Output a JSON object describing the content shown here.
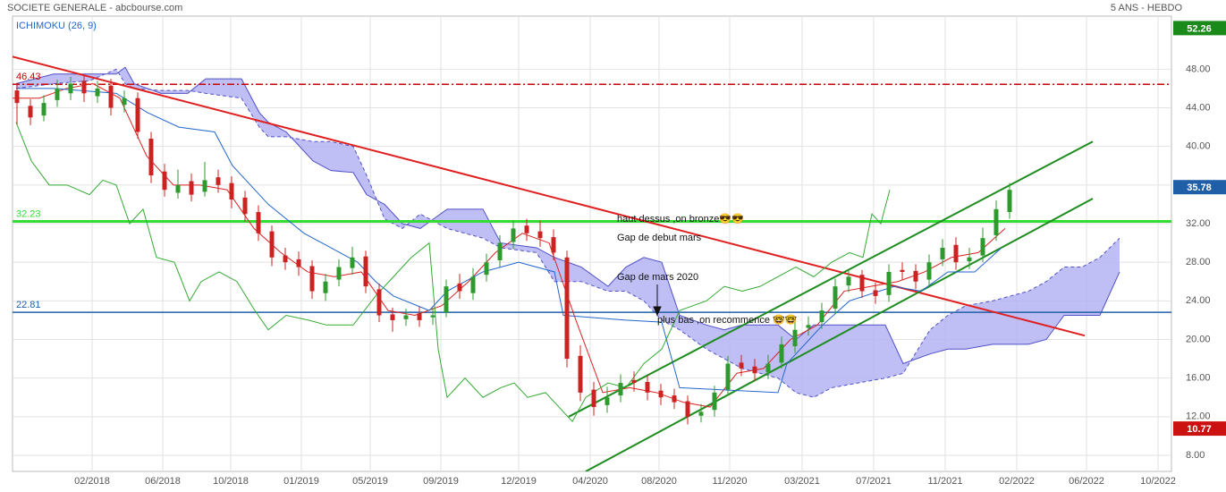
{
  "chart_data": {
    "type": "candlestick",
    "title": "SOCIETE GENERALE - abcbourse.com",
    "subtitle": "5 ANS - HEBDO",
    "indicator": "ICHIMOKU (26, 9)",
    "xlim": [
      0,
      259.2
    ],
    "ylim": [
      6.33,
      53.5
    ],
    "grid": true,
    "xticks": [
      {
        "value": 17.8,
        "label": "02/2018"
      },
      {
        "value": 33.6,
        "label": "06/2018"
      },
      {
        "value": 48.8,
        "label": "10/2018"
      },
      {
        "value": 64.6,
        "label": "01/2019"
      },
      {
        "value": 80,
        "label": "05/2019"
      },
      {
        "value": 95.8,
        "label": "09/2019"
      },
      {
        "value": 113.2,
        "label": "12/2019"
      },
      {
        "value": 129.2,
        "label": "04/2020"
      },
      {
        "value": 144.6,
        "label": "08/2020"
      },
      {
        "value": 160.4,
        "label": "11/2020"
      },
      {
        "value": 176.6,
        "label": "03/2021"
      },
      {
        "value": 192.6,
        "label": "07/2021"
      },
      {
        "value": 208.6,
        "label": "11/2021"
      },
      {
        "value": 224.6,
        "label": "02/2022"
      },
      {
        "value": 240.2,
        "label": "06/2022"
      },
      {
        "value": 256.2,
        "label": "10/2022"
      }
    ],
    "yticks": [
      {
        "value": 8,
        "label": "8.00"
      },
      {
        "value": 12,
        "label": "12.00"
      },
      {
        "value": 16,
        "label": "16.00"
      },
      {
        "value": 20,
        "label": "20.00"
      },
      {
        "value": 24,
        "label": "24.00"
      },
      {
        "value": 28,
        "label": "28.00"
      },
      {
        "value": 32,
        "label": "32.00"
      },
      {
        "value": 36,
        "label": "36.00"
      },
      {
        "value": 40,
        "label": "40.00"
      },
      {
        "value": 44,
        "label": "44.00"
      },
      {
        "value": 48,
        "label": "48.00"
      }
    ],
    "up_color": "#2e9a2e",
    "down_color": "#cc2222",
    "x": [
      1,
      4,
      7,
      10,
      13,
      16,
      19,
      22,
      25,
      28,
      31,
      34,
      37,
      40,
      43,
      46,
      49,
      52,
      55,
      58,
      61,
      64,
      67,
      70,
      73,
      76,
      79,
      82,
      85,
      88,
      91,
      94,
      97,
      100,
      103,
      106,
      109,
      112,
      115,
      118,
      121,
      124,
      127,
      130,
      133,
      136,
      139,
      142,
      145,
      148,
      151,
      154,
      157,
      160,
      163,
      166,
      169,
      172,
      175,
      178,
      181,
      184,
      187,
      190,
      193,
      196,
      199,
      202,
      205,
      208,
      211,
      214,
      217,
      220,
      223
    ],
    "open": [
      45.8,
      44.2,
      43.2,
      44.8,
      45.5,
      46.8,
      45.2,
      46.3,
      44.3,
      45,
      40.8,
      37.4,
      35.2,
      36.4,
      35.3,
      36.8,
      36.2,
      34.7,
      33.2,
      31.2,
      28.7,
      28.3,
      27.6,
      24.8,
      26.2,
      27.4,
      28.6,
      25.2,
      22.6,
      22.1,
      22.7,
      22.3,
      22.8,
      25.8,
      24.8,
      26.7,
      28.2,
      30.1,
      31.8,
      31.2,
      30.6,
      28.5,
      18.3,
      14.8,
      13.2,
      14.2,
      15.8,
      15.6,
      14.7,
      14.2,
      13.6,
      12.1,
      12.7,
      14.8,
      17.6,
      17.2,
      16.6,
      17.6,
      19.3,
      21.2,
      21.8,
      23.2,
      25.6,
      26.7,
      25.1,
      24.6,
      27.2,
      27.1,
      26.2,
      28.3,
      29.8,
      28.1,
      28.7,
      30.8,
      33.2
    ],
    "high": [
      46.6,
      44.9,
      45.3,
      46.9,
      47.2,
      47.4,
      46.8,
      47,
      45.8,
      45.6,
      41.5,
      38.2,
      37.6,
      37.2,
      38.4,
      37.6,
      36.9,
      35.4,
      33.9,
      31.8,
      29.5,
      29.1,
      28.2,
      26.8,
      28.3,
      29.6,
      29.2,
      25.8,
      23.3,
      23.2,
      23.4,
      23.3,
      26.2,
      26.8,
      27.4,
      28.9,
      30.8,
      32.3,
      32.5,
      32.3,
      31.4,
      29.2,
      19.4,
      15.6,
      15.1,
      16.4,
      16.7,
      16.3,
      15.4,
      14.9,
      14.2,
      13.3,
      15.2,
      18.3,
      18.4,
      18,
      18.4,
      20.3,
      21.8,
      22.4,
      23.8,
      26.3,
      27.3,
      27.2,
      25.9,
      27.8,
      28,
      27.8,
      28.8,
      30.4,
      30.6,
      29.5,
      31.6,
      34.4,
      36.2
    ],
    "low": [
      42.3,
      42.2,
      42.6,
      44.1,
      44.8,
      44.6,
      44.5,
      43.2,
      43.5,
      40.8,
      36.2,
      34.8,
      34.6,
      34.3,
      34.8,
      35.2,
      33.6,
      32.2,
      30.2,
      27.6,
      27.2,
      26.6,
      24.2,
      24,
      25.5,
      26.7,
      24.8,
      21.8,
      20.8,
      21.4,
      21.3,
      21.5,
      22.3,
      24.2,
      24.1,
      26,
      27.5,
      29.4,
      30.2,
      29.6,
      28.2,
      17.1,
      13.6,
      12.1,
      12.4,
      13.5,
      14.6,
      13.7,
      13.2,
      12.8,
      11.2,
      11.4,
      12,
      14.2,
      16.2,
      15.7,
      15.9,
      17,
      18.6,
      20.4,
      21.1,
      22.6,
      24.9,
      24.3,
      23.7,
      23.9,
      26.2,
      25.2,
      25.5,
      27.6,
      27.2,
      27.3,
      28,
      30.2,
      32.5
    ],
    "close": [
      44.5,
      43,
      44.5,
      46,
      46.5,
      45.5,
      46,
      44,
      45,
      41.5,
      37,
      35.5,
      36,
      35,
      36.5,
      36,
      34.5,
      33,
      31,
      28.5,
      28,
      27.5,
      25,
      26,
      27.5,
      28.5,
      25.5,
      22.5,
      22,
      22.5,
      22,
      22.5,
      25.5,
      25,
      26.5,
      28,
      30,
      31.5,
      31,
      30.5,
      29,
      18,
      14.5,
      13,
      14,
      15.5,
      15.5,
      14.5,
      14,
      13.5,
      12,
      12.5,
      14.5,
      17.5,
      17,
      16.5,
      17.5,
      19.5,
      21,
      21.5,
      23,
      25.5,
      26.5,
      25,
      24.5,
      27,
      27,
      26,
      28,
      29.5,
      28,
      28.5,
      30.5,
      33.5,
      35.5
    ],
    "cloud": {
      "color": "#b4b4f4",
      "line_color": "#5050c8",
      "x": [
        0.8,
        9.2,
        17.2,
        23.2,
        25.2,
        27.2,
        33.2,
        39.2,
        43.2,
        51.2,
        55.2,
        57.2,
        61.2,
        67.2,
        71.2,
        76.2,
        79.2,
        83.2,
        87.2,
        91.2,
        97.2,
        105.2,
        109.2,
        117.2,
        121.2,
        127.2,
        133.2,
        137.2,
        141.2,
        145.2,
        149.2,
        155.2,
        159.2,
        163.2,
        171.2,
        175.2,
        179.2,
        183.2,
        189.2,
        195.2,
        199.2,
        205.2,
        209.2,
        213.2,
        219.2,
        223.2,
        227.2,
        231.2,
        235.2,
        239.2,
        243.2,
        247.6
      ],
      "span_a": [
        46.5,
        47.5,
        47.5,
        47.5,
        48.2,
        46.5,
        45.5,
        45.5,
        47,
        47,
        43.5,
        42.5,
        41.5,
        38.5,
        37.5,
        37.3,
        35,
        34,
        32,
        31.5,
        33.5,
        33.5,
        30,
        29.5,
        28.5,
        27.5,
        25.5,
        27.5,
        28.5,
        28,
        22.5,
        21.5,
        21,
        21.5,
        21.5,
        20,
        21.5,
        21.5,
        21.5,
        21.5,
        17.5,
        18.5,
        19,
        19,
        19.5,
        19.5,
        19.5,
        20,
        22.5,
        22.5,
        22.5,
        27
      ],
      "span_b": [
        46,
        46.5,
        46.8,
        48,
        46.5,
        46,
        45.8,
        45.8,
        45.5,
        45,
        42,
        41,
        41,
        40.5,
        40.5,
        40,
        37,
        32.5,
        31.5,
        33,
        31.5,
        30.5,
        29.5,
        29,
        26,
        26,
        25,
        25,
        24,
        22,
        21,
        19,
        18,
        17,
        16,
        14.5,
        14,
        15,
        15.5,
        16,
        16.5,
        21,
        22.5,
        23.5,
        24,
        24.5,
        25,
        26,
        27.5,
        27.5,
        28.5,
        30.5
      ]
    },
    "lines": [
      {
        "color": "#dd2222",
        "x": [
          0,
          6,
          12,
          18,
          24,
          30,
          36,
          42,
          48,
          54,
          60,
          66,
          72,
          78,
          84,
          90,
          96,
          102,
          108,
          114,
          120,
          126,
          132,
          138,
          144,
          150,
          156,
          162,
          168,
          174,
          180,
          186,
          192,
          198,
          204,
          210,
          216,
          222
        ],
        "values": [
          45,
          45,
          46,
          46.5,
          45,
          39,
          36,
          36,
          35.5,
          31.5,
          29,
          27,
          26.5,
          27,
          23,
          22.5,
          23.5,
          26,
          29,
          31,
          30,
          22,
          14.5,
          15,
          14.5,
          13.5,
          13,
          16.5,
          17,
          20,
          21.5,
          25,
          25.5,
          26,
          27,
          28.5,
          29,
          31.5
        ]
      },
      {
        "color": "#2266cc",
        "x": [
          0.8,
          9.2,
          23.2,
          30.2,
          37.2,
          45.2,
          49.2,
          53.2,
          57.2,
          65.2,
          69.2,
          77.2,
          81.2,
          85.2,
          93.2,
          97.2,
          105.2,
          113.2,
          121.2,
          123.2,
          137.2,
          145.2,
          149.2,
          171.2,
          173.2,
          181.2,
          187.2,
          197.2,
          203.2,
          209.2,
          215.2,
          221.2
        ],
        "values": [
          46,
          46,
          45.5,
          43.5,
          42,
          41.5,
          38,
          36,
          34,
          31,
          30,
          28,
          26,
          24.5,
          23,
          25,
          27,
          28,
          27,
          22.5,
          22,
          21.8,
          15,
          14.5,
          17.5,
          21.5,
          24,
          25.5,
          25,
          27,
          27,
          29.5
        ]
      },
      {
        "color": "#33aa33",
        "x": [
          0.8,
          4.2,
          8.2,
          12.2,
          17.2,
          20.2,
          23.2,
          26.2,
          29.2,
          32.2,
          36.2,
          39.6,
          42.2,
          46.2,
          50.2,
          54.2,
          57.2,
          61.2,
          66.2,
          70.2,
          76.2,
          81.2,
          85.2,
          89.2,
          93.2,
          95.2,
          97.2,
          101.2,
          105.2,
          109.2,
          112.2,
          115.2,
          119.2,
          123.2,
          125.2,
          128.2,
          133.2,
          137.2,
          141.2,
          145.2,
          149.2,
          155.2,
          159.2,
          163.2,
          167.2,
          171.2,
          175.2,
          179.2,
          183.2,
          187.2,
          190.2,
          192.2,
          194.2,
          196.2
        ],
        "values": [
          42.5,
          38.5,
          36,
          36,
          35,
          36.5,
          36,
          32,
          33.5,
          28.5,
          28,
          24,
          26,
          27,
          26,
          23,
          21,
          22.5,
          22,
          21.5,
          21.5,
          24.5,
          26.5,
          28.5,
          30,
          19,
          14,
          16,
          14,
          15,
          15.5,
          14,
          14.5,
          12.5,
          11.5,
          14,
          15.5,
          15,
          17.5,
          19,
          23,
          24,
          25.5,
          25,
          25.5,
          26.5,
          27.5,
          26.5,
          28,
          29,
          28.5,
          33,
          32,
          35.5
        ]
      }
    ],
    "trendlines": [
      {
        "color": "#e02020",
        "x": [
          0,
          239.8
        ],
        "y": [
          49.3,
          20.4
        ]
      },
      {
        "color": "#1e8c1e",
        "x": [
          124.4,
          241.6
        ],
        "y": [
          12.0,
          40.5
        ]
      },
      {
        "color": "#1e8c1e",
        "x": [
          128.2,
          241.6
        ],
        "y": [
          6.33,
          34.6
        ]
      }
    ],
    "levels": [
      {
        "value": 46.43,
        "color": "#cc0000",
        "style": "dashdot"
      },
      {
        "value": 32.23,
        "color": "#33dd33",
        "style": "bold"
      },
      {
        "value": 22.81,
        "color": "#1f5fa8",
        "style": "solid"
      }
    ],
    "price_labels": [
      {
        "value": 52.26,
        "color": "#1a8a1a"
      },
      {
        "value": 35.78,
        "color": "#1f5fa8"
      },
      {
        "value": 10.77,
        "color": "#cc1111"
      }
    ],
    "annotations": [
      {
        "text": "haut dessus ,on bronze😎😎",
        "x": 135.2,
        "y": 32.47
      },
      {
        "text": "Gap de debut mars",
        "x": 135.2,
        "y": 30.52
      },
      {
        "text": "Gap de mars 2020",
        "x": 135.2,
        "y": 26.44
      },
      {
        "text": "plus bas ,on recommence 🤓🤓",
        "x": 144.2,
        "y": 21.99
      }
    ]
  }
}
